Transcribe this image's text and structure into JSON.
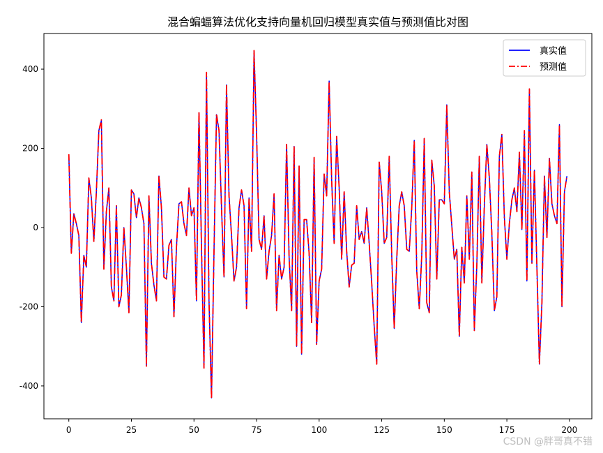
{
  "chart_data": {
    "type": "line",
    "title": "混合蝙蝠算法优化支持向量机回归模型真实值与预测值比对图",
    "xlabel": "",
    "ylabel": "",
    "xlim": [
      -9.95,
      208.95
    ],
    "ylim": [
      -483,
      490
    ],
    "xticks": [
      0,
      25,
      50,
      75,
      100,
      125,
      150,
      175,
      200
    ],
    "yticks": [
      -400,
      -200,
      0,
      200,
      400
    ],
    "grid": false,
    "legend_position": "top-right",
    "x": [
      0,
      1,
      2,
      3,
      4,
      5,
      6,
      7,
      8,
      9,
      10,
      11,
      12,
      13,
      14,
      15,
      16,
      17,
      18,
      19,
      20,
      21,
      22,
      23,
      24,
      25,
      26,
      27,
      28,
      29,
      30,
      31,
      32,
      33,
      34,
      35,
      36,
      37,
      38,
      39,
      40,
      41,
      42,
      43,
      44,
      45,
      46,
      47,
      48,
      49,
      50,
      51,
      52,
      53,
      54,
      55,
      56,
      57,
      58,
      59,
      60,
      61,
      62,
      63,
      64,
      65,
      66,
      67,
      68,
      69,
      70,
      71,
      72,
      73,
      74,
      75,
      76,
      77,
      78,
      79,
      80,
      81,
      82,
      83,
      84,
      85,
      86,
      87,
      88,
      89,
      90,
      91,
      92,
      93,
      94,
      95,
      96,
      97,
      98,
      99,
      100,
      101,
      102,
      103,
      104,
      105,
      106,
      107,
      108,
      109,
      110,
      111,
      112,
      113,
      114,
      115,
      116,
      117,
      118,
      119,
      120,
      121,
      122,
      123,
      124,
      125,
      126,
      127,
      128,
      129,
      130,
      131,
      132,
      133,
      134,
      135,
      136,
      137,
      138,
      139,
      140,
      141,
      142,
      143,
      144,
      145,
      146,
      147,
      148,
      149,
      150,
      151,
      152,
      153,
      154,
      155,
      156,
      157,
      158,
      159,
      160,
      161,
      162,
      163,
      164,
      165,
      166,
      167,
      168,
      169,
      170,
      171,
      172,
      173,
      174,
      175,
      176,
      177,
      178,
      179,
      180,
      181,
      182,
      183,
      184,
      185,
      186,
      187,
      188,
      189,
      190,
      191,
      192,
      193,
      194,
      195,
      196,
      197,
      198,
      199
    ],
    "series": [
      {
        "name": "真实值",
        "color": "#0000ff",
        "linestyle": "solid",
        "values": [
          185,
          -65,
          35,
          10,
          -20,
          -240,
          -70,
          -100,
          125,
          75,
          -35,
          90,
          245,
          270,
          -105,
          40,
          100,
          -150,
          -185,
          55,
          -200,
          -170,
          0,
          -100,
          -215,
          95,
          85,
          25,
          75,
          50,
          10,
          -350,
          80,
          -90,
          -145,
          -185,
          130,
          50,
          -125,
          -130,
          -45,
          -30,
          -225,
          -50,
          60,
          65,
          10,
          -20,
          100,
          30,
          50,
          -185,
          290,
          -50,
          -355,
          390,
          -185,
          -430,
          -60,
          285,
          245,
          50,
          -125,
          360,
          80,
          -20,
          -135,
          -100,
          50,
          95,
          55,
          -205,
          75,
          -60,
          445,
          240,
          -30,
          -55,
          30,
          -130,
          -60,
          -20,
          85,
          -210,
          -70,
          -130,
          -100,
          210,
          -75,
          -210,
          205,
          -300,
          155,
          -320,
          20,
          20,
          -65,
          -240,
          175,
          -295,
          -135,
          -105,
          135,
          80,
          370,
          120,
          -40,
          230,
          100,
          -80,
          90,
          -60,
          -150,
          -95,
          -90,
          55,
          -30,
          -10,
          -40,
          50,
          -40,
          -140,
          -250,
          -345,
          165,
          90,
          -40,
          -25,
          180,
          -70,
          -255,
          -80,
          55,
          90,
          55,
          -55,
          -60,
          50,
          220,
          -110,
          -205,
          -70,
          225,
          -190,
          -215,
          170,
          105,
          -130,
          70,
          70,
          60,
          310,
          90,
          5,
          -80,
          -55,
          -275,
          -50,
          -140,
          80,
          -80,
          140,
          -260,
          -95,
          180,
          -140,
          55,
          210,
          125,
          -15,
          -210,
          -175,
          180,
          235,
          25,
          -80,
          10,
          70,
          100,
          40,
          190,
          -5,
          240,
          -135,
          350,
          -90,
          145,
          -100,
          -345,
          -190,
          130,
          -25,
          175,
          60,
          30,
          10,
          260,
          -200,
          90,
          130
        ]
      },
      {
        "name": "预测值",
        "color": "#ff0000",
        "linestyle": "dashdot",
        "values": [
          185,
          -65,
          35,
          10,
          -20,
          -240,
          -70,
          -100,
          125,
          75,
          -35,
          90,
          245,
          272,
          -105,
          40,
          100,
          -150,
          -185,
          55,
          -200,
          -170,
          0,
          -100,
          -215,
          95,
          85,
          25,
          75,
          50,
          10,
          -350,
          80,
          -90,
          -145,
          -185,
          132,
          50,
          -125,
          -130,
          -45,
          -30,
          -225,
          -50,
          60,
          65,
          10,
          -20,
          100,
          30,
          50,
          -185,
          292,
          -50,
          -355,
          392,
          -185,
          -432,
          -60,
          287,
          245,
          50,
          -125,
          362,
          80,
          -20,
          -135,
          -100,
          50,
          95,
          55,
          -205,
          75,
          -60,
          447,
          240,
          -30,
          -55,
          30,
          -130,
          -60,
          -20,
          85,
          -210,
          -70,
          -130,
          -100,
          210,
          -75,
          -210,
          205,
          -300,
          155,
          -320,
          20,
          20,
          -65,
          -240,
          177,
          -295,
          -135,
          -105,
          135,
          80,
          368,
          120,
          -40,
          230,
          100,
          -80,
          90,
          -60,
          -150,
          -95,
          -90,
          55,
          -30,
          -10,
          -40,
          50,
          -40,
          -140,
          -250,
          -345,
          165,
          90,
          -40,
          -25,
          180,
          -70,
          -255,
          -80,
          55,
          90,
          55,
          -55,
          -60,
          50,
          220,
          -110,
          -205,
          -70,
          225,
          -190,
          -215,
          170,
          105,
          -130,
          70,
          70,
          60,
          310,
          90,
          5,
          -80,
          -55,
          -275,
          -50,
          -140,
          80,
          -80,
          140,
          -260,
          -95,
          180,
          -140,
          55,
          210,
          125,
          -15,
          -210,
          -175,
          180,
          235,
          25,
          -80,
          10,
          70,
          100,
          40,
          190,
          -5,
          245,
          -135,
          350,
          -90,
          145,
          -100,
          -345,
          -190,
          130,
          -25,
          175,
          60,
          30,
          10,
          260,
          -200,
          90,
          130
        ]
      }
    ]
  },
  "watermark": "CSDN @胖哥真不错"
}
